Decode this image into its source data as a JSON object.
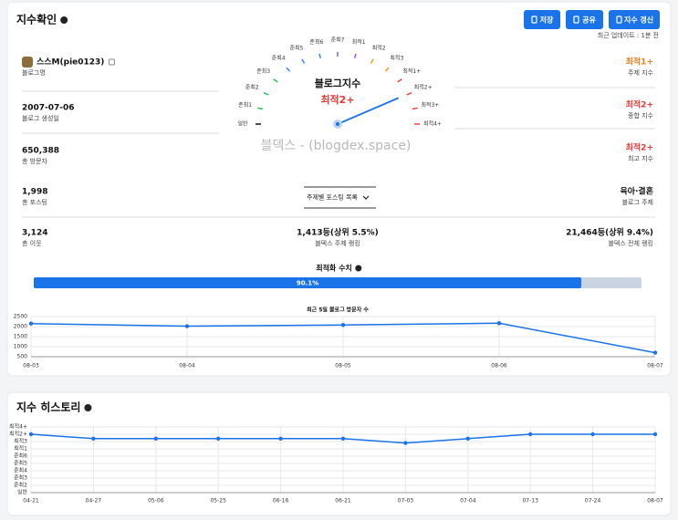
{
  "header": {
    "title": "지수확인",
    "buttons": [
      "저장",
      "공유",
      "지수 갱신"
    ],
    "updated": "최근 업데이트 : 1분 전"
  },
  "left": [
    {
      "value": "스스M(pie0123)",
      "label": "블로그명"
    },
    {
      "value": "2007-07-06",
      "label": "블로그 생성일"
    },
    {
      "value": "650,388",
      "label": "총 방문자"
    },
    {
      "value": "1,998",
      "label": "총 포스팅"
    },
    {
      "value": "3,124",
      "label": "총 이웃"
    }
  ],
  "right": [
    {
      "value": "최적1+",
      "label": "주제 지수",
      "color": "#ea7a1a"
    },
    {
      "value": "최적2+",
      "label": "종합 지수",
      "color": "#e53935"
    },
    {
      "value": "최적2+",
      "label": "최고 지수",
      "color": "#e53935"
    },
    {
      "value": "육아·결혼",
      "label": "블로그 주제",
      "color": "#111111"
    },
    {
      "value": "21,464등(상위 9.4%)",
      "label": "블덱스 전체 랭킹",
      "color": "#111111"
    }
  ],
  "middle": {
    "dropdown": "주제별 포스팅 목록",
    "value": "1,413등(상위 5.5%)",
    "label": "블덱스 주제 랭킹"
  },
  "gauge": {
    "title": "블로그지수",
    "value": "최적2+",
    "value_color": "#e53935",
    "watermark": "블덱스 - (blogdex.space)",
    "levels": [
      {
        "label": "일반",
        "color": "#111111"
      },
      {
        "label": "준최1",
        "color": "#22c55e"
      },
      {
        "label": "준최2",
        "color": "#22c55e"
      },
      {
        "label": "준최3",
        "color": "#22c55e"
      },
      {
        "label": "준최4",
        "color": "#3b82f6"
      },
      {
        "label": "준최5",
        "color": "#3b82f6"
      },
      {
        "label": "준최6",
        "color": "#3b82f6"
      },
      {
        "label": "준최7",
        "color": "#8b5cf6"
      },
      {
        "label": "최적1",
        "color": "#a855f7"
      },
      {
        "label": "최적2",
        "color": "#f59e0b"
      },
      {
        "label": "최적3",
        "color": "#f59e0b"
      },
      {
        "label": "최적1+",
        "color": "#ef4444"
      },
      {
        "label": "최적2+",
        "color": "#ef4444"
      },
      {
        "label": "최적3+",
        "color": "#ef4444"
      },
      {
        "label": "최적4+",
        "color": "#ef4444"
      }
    ]
  },
  "optimization": {
    "title": "최적화 수치",
    "value": 90.1,
    "value_label": "90.1%"
  },
  "chart_data": [
    {
      "type": "line",
      "title": "최근 5일 블로그 방문자 수",
      "categories": [
        "08-03",
        "08-04",
        "08-05",
        "08-06",
        "08-07"
      ],
      "values": [
        2150,
        2020,
        2080,
        2170,
        700
      ],
      "color": "#1a73e8",
      "ylim": [
        500,
        2500
      ],
      "yticks": [
        500,
        1000,
        1500,
        2000,
        2500
      ],
      "grid": true
    },
    {
      "type": "line",
      "title": "지수 히스토리",
      "categories": [
        "04-21",
        "04-27",
        "05-06",
        "05-25",
        "06-16",
        "06-21",
        "07-03",
        "07-04",
        "07-13",
        "07-24",
        "08-07"
      ],
      "values": [
        8,
        7.4,
        7.4,
        7.4,
        7.4,
        7.4,
        6.8,
        7.4,
        8,
        8,
        8
      ],
      "color": "#1a73e8",
      "ylim": [
        0,
        9
      ],
      "yticks": [
        {
          "value": 0,
          "label": "일반"
        },
        {
          "value": 1,
          "label": "준최2"
        },
        {
          "value": 2,
          "label": "준최3"
        },
        {
          "value": 3,
          "label": "준최4"
        },
        {
          "value": 4,
          "label": "준최5"
        },
        {
          "value": 5,
          "label": "준최6"
        },
        {
          "value": 6,
          "label": "최적1"
        },
        {
          "value": 7,
          "label": "최적3"
        },
        {
          "value": 8,
          "label": "최적2+"
        },
        {
          "value": 9,
          "label": "최적4+"
        }
      ],
      "grid": true
    }
  ]
}
